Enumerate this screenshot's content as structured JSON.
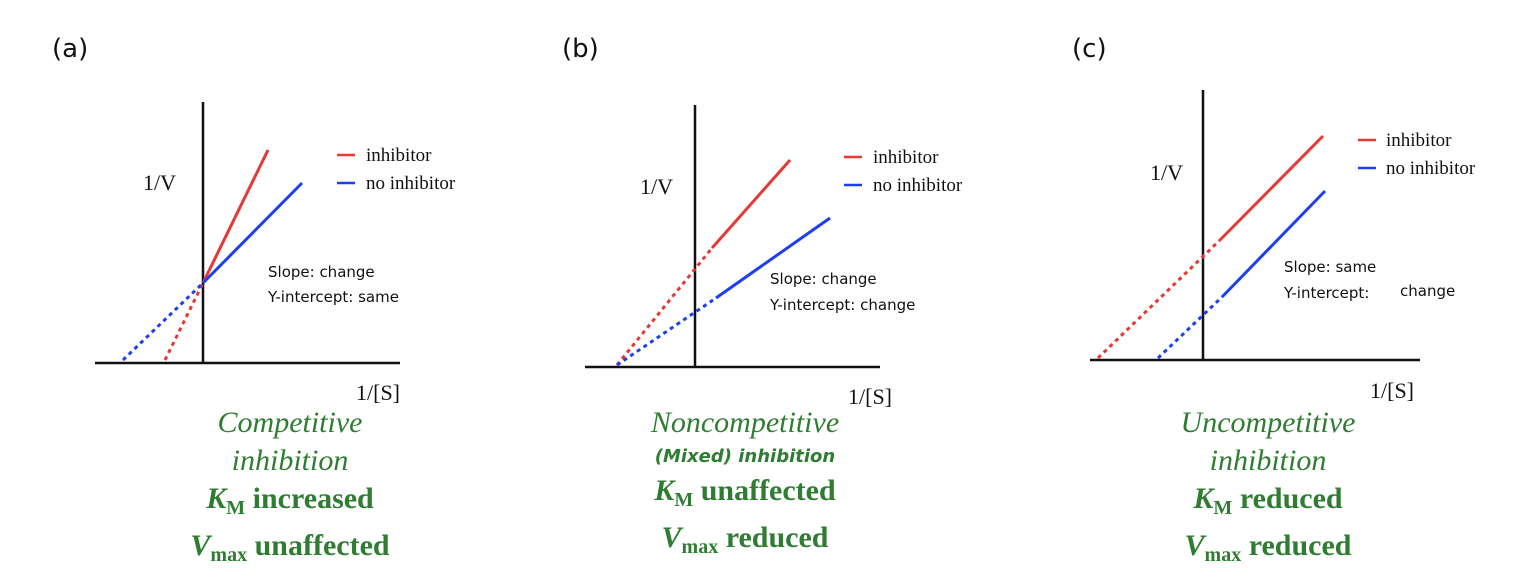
{
  "panels": [
    {
      "label": "(a)",
      "yaxis": "1/V",
      "xaxis": "1/[S]",
      "legend": [
        "inhibitor",
        "no inhibitor"
      ],
      "note1": "Slope: change",
      "note2": "Y-intercept: same",
      "cap1": "Competitive",
      "cap2": "inhibition",
      "km": "K",
      "km_sub": "M",
      "km_text": " increased",
      "vmax": "V",
      "vmax_sub": "max",
      "vmax_text": " unaffected"
    },
    {
      "label": "(b)",
      "yaxis": "1/V",
      "xaxis": "1/[S]",
      "legend": [
        "inhibitor",
        "no inhibitor"
      ],
      "note1": "Slope: change",
      "note2": "Y-intercept: change",
      "cap1": "Noncompetitive",
      "cap2": "(Mixed) inhibition",
      "km": "K",
      "km_sub": "M",
      "km_text": " unaffected",
      "vmax": "V",
      "vmax_sub": "max",
      "vmax_text": " reduced"
    },
    {
      "label": "(c)",
      "yaxis": "1/V",
      "xaxis": "1/[S]",
      "legend": [
        "inhibitor",
        "no inhibitor"
      ],
      "note1": "Slope: same",
      "note2": "Y-intercept:",
      "note2b": "change",
      "cap1": "Uncompetitive",
      "cap2": "inhibition",
      "km": "K",
      "km_sub": "M",
      "km_text": " reduced",
      "vmax": "V",
      "vmax_sub": "max",
      "vmax_text": " reduced"
    }
  ],
  "colors": {
    "inhibitor": "#e53935",
    "no_inhibitor": "#1e3ff0",
    "axis": "#111111",
    "caption": "#2e7d32"
  }
}
